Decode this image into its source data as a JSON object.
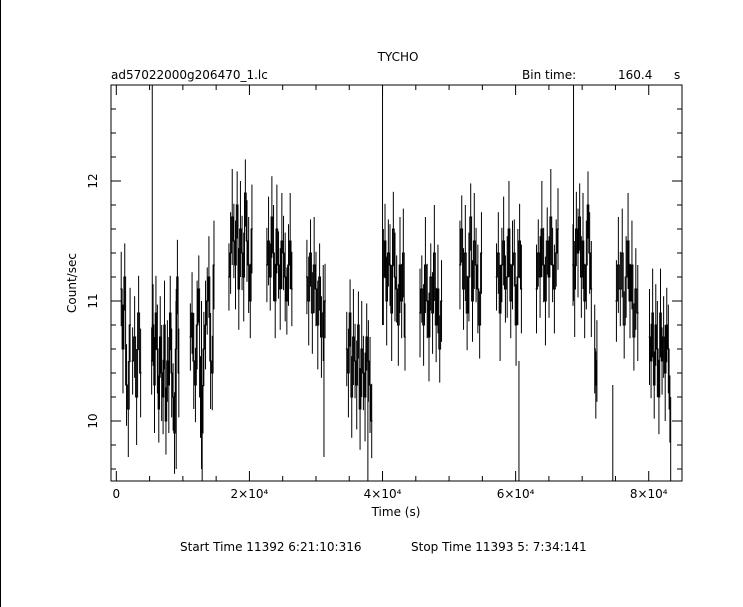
{
  "chart_data": {
    "type": "line",
    "title": "TYCHO",
    "file_label": "ad57022000g206470_1.lc",
    "bin_time_label": "Bin time:",
    "bin_time_value": "160.4",
    "bin_time_unit": "s",
    "xlabel": "Time (s)",
    "ylabel": "Count/sec",
    "xlim": [
      -800,
      85000
    ],
    "ylim": [
      9.5,
      12.8
    ],
    "xticks": [
      0,
      20000,
      40000,
      60000,
      80000
    ],
    "xtick_labels": [
      "0",
      "2×10⁴",
      "4×10⁴",
      "6×10⁴",
      "8×10⁴"
    ],
    "yticks": [
      10,
      11,
      12
    ],
    "ytick_labels": [
      "10",
      "11",
      "12"
    ],
    "grid": false,
    "segments": [
      {
        "x_start": 600,
        "x_end": 2200,
        "values": [
          11.1,
          10.6,
          11.2,
          10.3,
          10.1,
          10.8
        ]
      },
      {
        "x_start": 2300,
        "x_end": 3800,
        "values": [
          10.5,
          10.7,
          10.2,
          10.9,
          10.4
        ]
      },
      {
        "x_start": 5200,
        "x_end": 9500,
        "values": [
          10.5,
          10.8,
          10.3,
          10.9,
          10.6,
          10.1,
          10.7,
          10.4,
          10.2,
          10.8,
          10.0,
          10.5,
          10.3,
          10.9,
          10.4,
          10.2,
          9.9,
          10.6,
          11.2,
          10.4
        ]
      },
      {
        "x_start": 11000,
        "x_end": 14800,
        "values": [
          10.7,
          10.9,
          10.5,
          10.3,
          10.8,
          11.1,
          10.2,
          9.9,
          10.6,
          10.8,
          11.0,
          11.2,
          10.5,
          10.4,
          11.3
        ]
      },
      {
        "x_start": 16800,
        "x_end": 20500,
        "values": [
          11.2,
          11.4,
          11.7,
          11.5,
          11.3,
          11.8,
          11.1,
          11.6,
          11.4,
          11.2,
          11.9,
          11.5,
          11.3,
          11.0,
          11.6
        ]
      },
      {
        "x_start": 22500,
        "x_end": 26500,
        "values": [
          11.3,
          11.5,
          11.2,
          11.7,
          11.4,
          11.0,
          11.6,
          11.3,
          11.1,
          11.5,
          11.4,
          11.2,
          11.0,
          11.3,
          11.5,
          11.1
        ]
      },
      {
        "x_start": 28500,
        "x_end": 31500,
        "values": [
          11.2,
          11.0,
          11.4,
          10.9,
          11.3,
          11.1,
          10.8,
          11.2,
          10.7,
          10.9,
          11.0
        ]
      },
      {
        "x_start": 34500,
        "x_end": 38500,
        "values": [
          10.6,
          10.4,
          10.9,
          10.2,
          10.7,
          10.5,
          10.3,
          10.8,
          10.1,
          10.6,
          10.4,
          10.2,
          10.7,
          10.5,
          10.3,
          10.0
        ]
      },
      {
        "x_start": 40000,
        "x_end": 43500,
        "values": [
          11.2,
          11.5,
          11.0,
          11.4,
          11.3,
          10.9,
          11.6,
          11.2,
          11.1,
          10.8,
          11.3,
          11.0,
          11.4,
          10.7
        ]
      },
      {
        "x_start": 45500,
        "x_end": 49000,
        "values": [
          10.9,
          11.1,
          10.8,
          11.3,
          11.0,
          10.7,
          11.2,
          10.9,
          11.4,
          10.8,
          11.1,
          10.6,
          11.0
        ]
      },
      {
        "x_start": 51500,
        "x_end": 55000,
        "values": [
          11.3,
          11.6,
          11.1,
          11.4,
          10.9,
          11.2,
          11.7,
          11.0,
          11.5,
          11.3,
          11.1,
          10.8,
          11.4
        ]
      },
      {
        "x_start": 57000,
        "x_end": 61000,
        "values": [
          11.2,
          11.4,
          10.9,
          11.3,
          11.5,
          11.1,
          11.2,
          11.6,
          11.0,
          11.3,
          11.4,
          10.8,
          11.2,
          11.5,
          11.1
        ]
      },
      {
        "x_start": 63000,
        "x_end": 66500,
        "values": [
          11.1,
          11.4,
          11.2,
          11.6,
          11.3,
          11.0,
          11.5,
          11.2,
          11.7,
          11.3,
          11.1,
          11.4,
          11.6
        ]
      },
      {
        "x_start": 68500,
        "x_end": 71500,
        "values": [
          11.3,
          11.1,
          11.6,
          11.4,
          11.7,
          11.2,
          11.5,
          11.0,
          11.3,
          11.8,
          11.4,
          11.1
        ]
      },
      {
        "x_start": 71800,
        "x_end": 72300,
        "values": [
          10.6,
          10.3,
          10.5
        ]
      },
      {
        "x_start": 75000,
        "x_end": 78500,
        "values": [
          11.0,
          11.3,
          11.1,
          11.4,
          10.8,
          11.2,
          11.5,
          11.0,
          11.3,
          10.7,
          11.1,
          10.9
        ]
      },
      {
        "x_start": 80000,
        "x_end": 83300,
        "values": [
          10.7,
          10.5,
          10.9,
          10.3,
          10.8,
          10.6,
          10.2,
          10.9,
          10.5,
          10.7,
          10.4,
          10.8,
          10.6,
          10.1
        ]
      }
    ],
    "spikes": [
      {
        "x": 5400,
        "low": 10.5,
        "high": 12.8
      },
      {
        "x": 9000,
        "low": 9.6,
        "high": 11.1
      },
      {
        "x": 12800,
        "low": 9.6,
        "high": 11.0
      },
      {
        "x": 31200,
        "low": 9.7,
        "high": 10.9
      },
      {
        "x": 37800,
        "low": 9.5,
        "high": 10.6
      },
      {
        "x": 40000,
        "low": 10.8,
        "high": 12.8
      },
      {
        "x": 60500,
        "low": 9.5,
        "high": 10.5
      },
      {
        "x": 68700,
        "low": 11.0,
        "high": 12.8
      },
      {
        "x": 74600,
        "low": 9.5,
        "high": 10.3
      },
      {
        "x": 83300,
        "low": 9.5,
        "high": 10.2
      }
    ]
  },
  "footer": {
    "start_time": "Start Time 11392  6:21:10:316",
    "stop_time": "Stop Time 11393  5: 7:34:141"
  }
}
